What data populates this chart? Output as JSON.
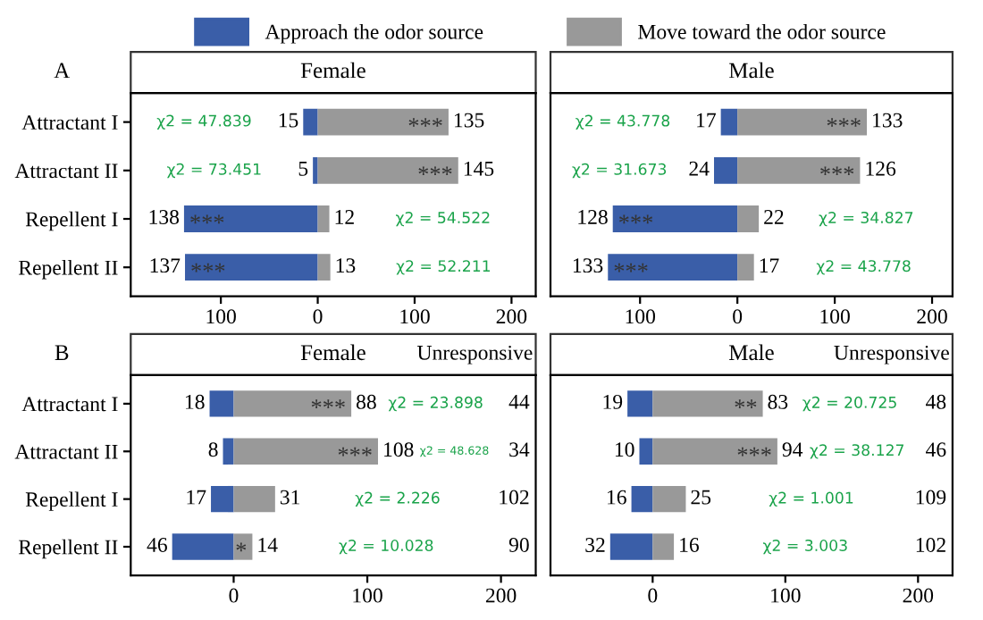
{
  "chart_data": [
    {
      "type": "bar",
      "orientation": "horizontal",
      "title": "Female",
      "legend": "top",
      "categories": [
        "Attractant I",
        "Attractant II",
        "Repellent I",
        "Repellent II"
      ],
      "xlim": [
        -193,
        225
      ],
      "xticks": [
        {
          "value": -100,
          "label": "100"
        },
        0,
        100,
        200
      ],
      "series": [
        {
          "name": "Approach the odor source",
          "color": "#3a5ea8",
          "base": [
            -15,
            -5,
            -138,
            -137
          ],
          "values": [
            15,
            5,
            138,
            137
          ],
          "data_labels": true
        },
        {
          "name": "Move toward the odor source",
          "color": "#999999",
          "values": [
            135,
            145,
            12,
            13
          ],
          "data_labels": true
        }
      ],
      "annotations": [
        "χ2 = 47.839",
        "χ2 = 73.451",
        "χ2 = 54.522",
        "χ2 = 52.211",
        "A",
        {
          "text": "***",
          "x": 135,
          "y": "Attractant I"
        },
        {
          "text": "***",
          "x": 145,
          "y": "Attractant II"
        },
        {
          "text": "***",
          "x": -138,
          "y": "Repellent I"
        },
        {
          "text": "***",
          "x": -137,
          "y": "Repellent II"
        }
      ]
    },
    {
      "type": "bar",
      "orientation": "horizontal",
      "title": "Male",
      "categories": [
        "Attractant I",
        "Attractant II",
        "Repellent I",
        "Repellent II"
      ],
      "xlim": [
        -192,
        221
      ],
      "xticks": [
        {
          "value": -100,
          "label": "100"
        },
        0,
        100,
        200
      ],
      "tick_labels": "x",
      "series": [
        {
          "color": "#3a5ea8",
          "base": [
            -17,
            -24,
            -128,
            -133
          ],
          "values": [
            17,
            24,
            128,
            133
          ],
          "data_labels": true
        },
        {
          "color": "#999999",
          "values": [
            133,
            126,
            22,
            17
          ],
          "data_labels": true
        }
      ],
      "annotations": [
        "χ2 = 43.778",
        "χ2 = 31.673",
        "χ2 = 34.827",
        "χ2 = 43.778",
        {
          "text": "***",
          "x": 133,
          "y": "Attractant I"
        },
        {
          "text": "***",
          "x": 126,
          "y": "Attractant II"
        },
        {
          "text": "***",
          "x": -128,
          "y": "Repellent I"
        },
        {
          "text": "***",
          "x": -133,
          "y": "Repellent II"
        }
      ]
    },
    {
      "type": "bar",
      "orientation": "horizontal",
      "title": "Female",
      "categories": [
        "Attractant I",
        "Attractant II",
        "Repellent I",
        "Repellent II"
      ],
      "xlim": [
        -77,
        226
      ],
      "xticks": [
        0,
        100,
        200
      ],
      "series": [
        {
          "color": "#3a5ea8",
          "base": [
            -18,
            -8,
            -17,
            -46
          ],
          "values": [
            18,
            8,
            17,
            46
          ],
          "data_labels": true
        },
        {
          "color": "#999999",
          "values": [
            88,
            108,
            31,
            14
          ],
          "data_labels": true
        }
      ],
      "annotations": [
        "χ2 = 23.898",
        "χ2 = 48.628",
        "χ2 = 2.226",
        "χ2 = 10.028",
        "Unresponsive",
        "44",
        "34",
        "102",
        "90",
        "B",
        {
          "text": "***",
          "x": 88,
          "y": "Attractant I"
        },
        {
          "text": "***",
          "x": 108,
          "y": "Attractant II"
        },
        {
          "text": "*",
          "x": 14,
          "y": "Repellent II"
        }
      ]
    },
    {
      "type": "bar",
      "orientation": "horizontal",
      "title": "Male",
      "categories": [
        "Attractant I",
        "Attractant II",
        "Repellent I",
        "Repellent II"
      ],
      "xlim": [
        -77,
        226
      ],
      "xticks": [
        0,
        100,
        200
      ],
      "tick_labels": "x",
      "series": [
        {
          "color": "#3a5ea8",
          "base": [
            -19,
            -10,
            -16,
            -32
          ],
          "values": [
            19,
            10,
            16,
            32
          ],
          "data_labels": true
        },
        {
          "color": "#999999",
          "values": [
            83,
            94,
            25,
            16
          ],
          "data_labels": true
        }
      ],
      "annotations": [
        "χ2 = 20.725",
        "χ2 = 38.127",
        "χ2 = 1.001",
        "χ2 = 3.003",
        "Unresponsive",
        "48",
        "46",
        "109",
        "102",
        {
          "text": "**",
          "x": 83,
          "y": "Attractant I"
        },
        {
          "text": "***",
          "x": 94,
          "y": "Attractant II"
        }
      ]
    }
  ]
}
